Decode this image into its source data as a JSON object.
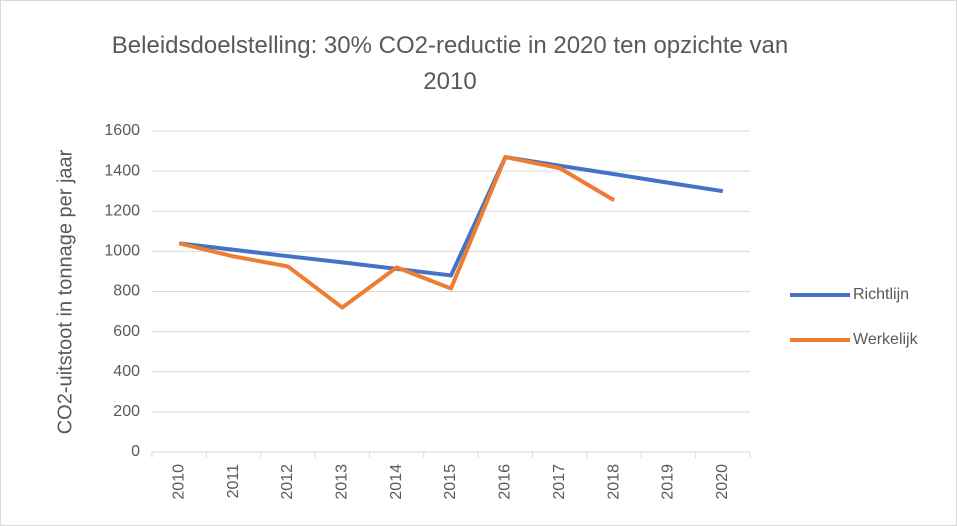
{
  "chart_data": {
    "type": "line",
    "title": "Beleidsdoelstelling: 30% CO2-reductie in 2020 ten opzichte van 2010",
    "y_label": "CO2-uitstoot in tonnage per jaar",
    "categories": [
      "2010",
      "2011",
      "2012",
      "2013",
      "2014",
      "2015",
      "2016",
      "2017",
      "2018",
      "2019",
      "2020"
    ],
    "series": [
      {
        "name": "Richtlijn",
        "color": "#4472c4",
        "values": [
          1040,
          1008,
          976,
          945,
          913,
          880,
          1470,
          1427,
          1385,
          1342,
          1300
        ]
      },
      {
        "name": "Werkelijk",
        "color": "#ed7d31",
        "values": [
          1040,
          975,
          925,
          720,
          920,
          815,
          1470,
          1415,
          1255,
          null,
          null
        ]
      }
    ],
    "ylim": [
      0,
      1600
    ],
    "yticks": [
      0,
      200,
      400,
      600,
      800,
      1000,
      1200,
      1400,
      1600
    ],
    "grid": true,
    "legend": "right"
  }
}
